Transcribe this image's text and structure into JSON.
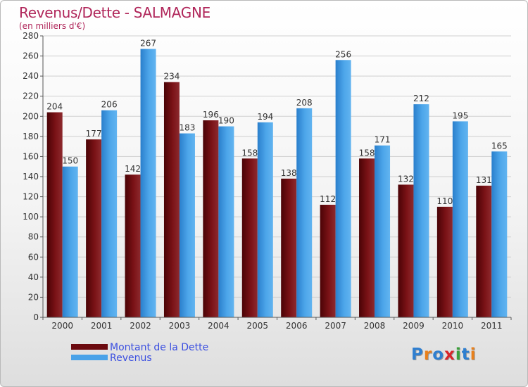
{
  "header": {
    "title": "Revenus/Dette - SALMAGNE",
    "subtitle": "(en milliers d'€)"
  },
  "legend": {
    "items": [
      {
        "label": "Montant de la Dette",
        "color": "#6b0a0f"
      },
      {
        "label": "Revenus",
        "color": "#4aa2e8"
      }
    ]
  },
  "logo": {
    "text": "Proxiti",
    "letter_colors": [
      "#2f7fd0",
      "#e8801c",
      "#2f7fd0",
      "#d8262a",
      "#3aa03a",
      "#2f7fd0",
      "#e8801c"
    ]
  },
  "chart_data": {
    "type": "bar",
    "title": "Revenus/Dette - SALMAGNE",
    "subtitle": "(en milliers d'€)",
    "xlabel": "",
    "ylabel": "",
    "categories": [
      "2000",
      "2001",
      "2002",
      "2003",
      "2004",
      "2005",
      "2006",
      "2007",
      "2008",
      "2009",
      "2010",
      "2011"
    ],
    "series": [
      {
        "name": "Montant de la Dette",
        "color": "#6b0a0f",
        "values": [
          204,
          177,
          142,
          234,
          196,
          158,
          138,
          112,
          158,
          132,
          110,
          131
        ]
      },
      {
        "name": "Revenus",
        "color": "#4aa2e8",
        "values": [
          150,
          206,
          267,
          183,
          190,
          194,
          208,
          256,
          171,
          212,
          195,
          165
        ]
      }
    ],
    "ylim": [
      0,
      280
    ],
    "yticks": [
      0,
      20,
      40,
      60,
      80,
      100,
      120,
      140,
      160,
      180,
      200,
      220,
      240,
      260,
      280
    ],
    "grid": true,
    "legend_position": "bottom-left"
  }
}
